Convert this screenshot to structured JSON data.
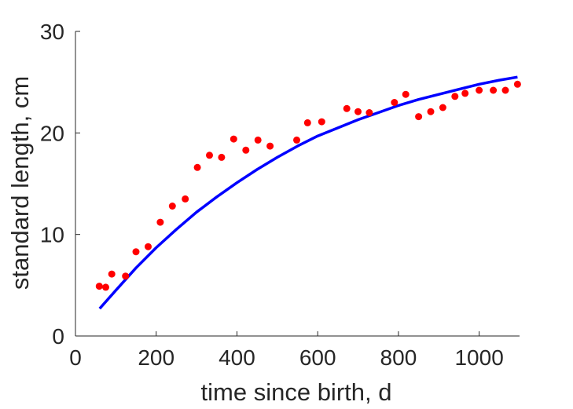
{
  "chart_data": {
    "type": "scatter",
    "xlabel": "time since birth, d",
    "ylabel": "standard length, cm",
    "xlim": [
      0,
      1100
    ],
    "ylim": [
      0,
      30
    ],
    "xticks": [
      0,
      200,
      400,
      600,
      800,
      1000
    ],
    "yticks": [
      0,
      10,
      20,
      30
    ],
    "grid": false,
    "colors": {
      "points": "#ff0000",
      "curve": "#0000ff",
      "axes": "#262626"
    },
    "series": [
      {
        "type": "scatter",
        "x": [
          59,
          75,
          90,
          124,
          150,
          180,
          210,
          240,
          272,
          302,
          332,
          362,
          392,
          422,
          452,
          482,
          548,
          575,
          610,
          672,
          700,
          728,
          790,
          818,
          850,
          880,
          910,
          940,
          965,
          1000,
          1035,
          1065,
          1095
        ],
        "y": [
          4.9,
          4.8,
          6.1,
          5.9,
          8.3,
          8.8,
          11.2,
          12.8,
          13.5,
          16.6,
          17.8,
          17.6,
          19.4,
          18.3,
          19.3,
          18.7,
          19.3,
          21.0,
          21.1,
          22.4,
          22.1,
          22.0,
          23.0,
          23.8,
          21.6,
          22.1,
          22.5,
          23.6,
          23.9,
          24.2,
          24.2,
          24.2,
          24.8
        ]
      },
      {
        "type": "line",
        "x": [
          60,
          100,
          150,
          200,
          250,
          300,
          350,
          400,
          450,
          500,
          550,
          600,
          650,
          700,
          750,
          800,
          850,
          900,
          950,
          1000,
          1050,
          1095
        ],
        "y": [
          2.7,
          4.5,
          6.7,
          8.7,
          10.5,
          12.2,
          13.7,
          15.1,
          16.4,
          17.6,
          18.7,
          19.7,
          20.5,
          21.3,
          22.0,
          22.7,
          23.3,
          23.8,
          24.3,
          24.8,
          25.2,
          25.5
        ]
      }
    ]
  }
}
